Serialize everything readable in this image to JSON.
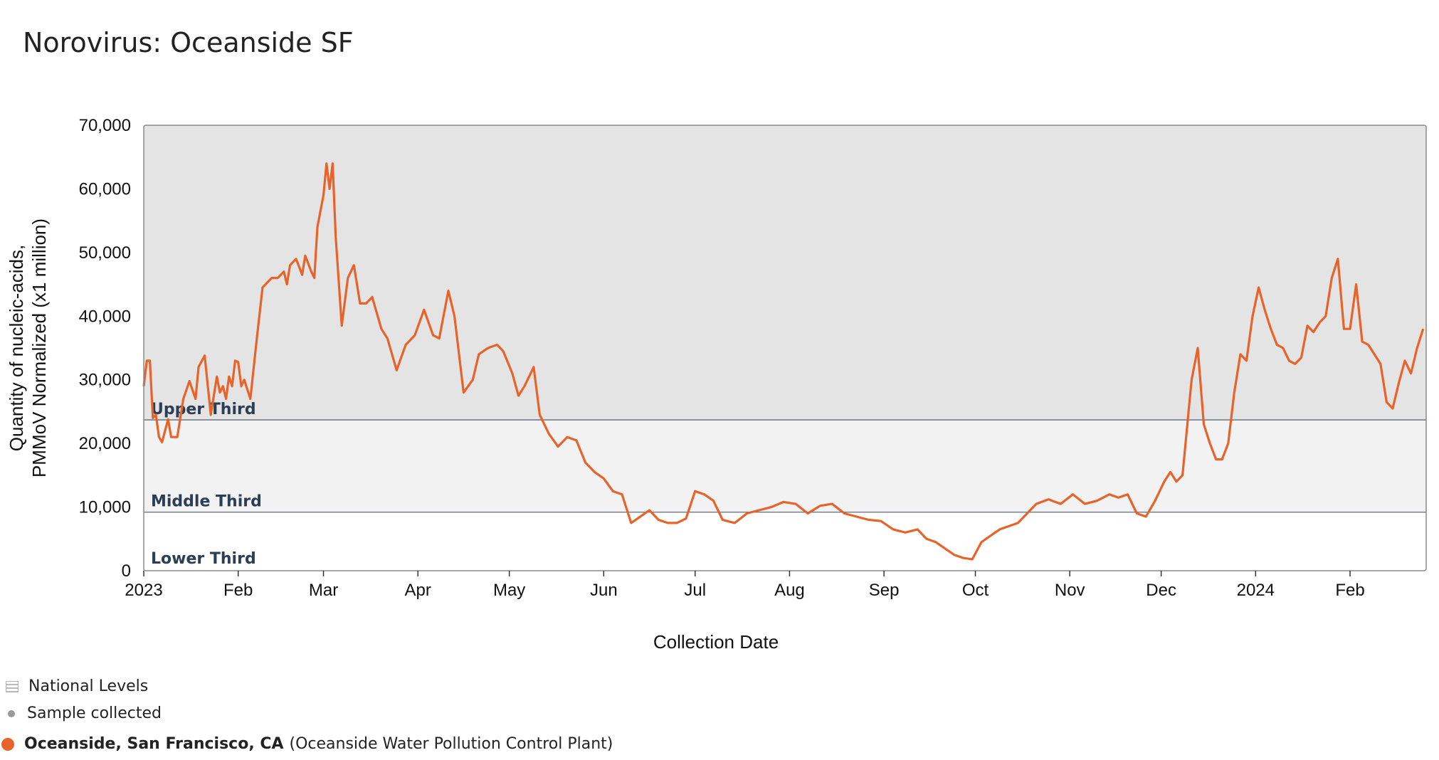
{
  "title": "Norovirus: Oceanside SF",
  "legend": {
    "national_label": "National Levels",
    "sample_label": "Sample collected",
    "site_name": "Oceanside, San Francisco, CA",
    "site_plant": "(Oceanside Water Pollution Control Plant)"
  },
  "colors": {
    "line": "#e8632a",
    "upper_band": "#e4e4e4",
    "middle_band": "#f2f2f2",
    "lower_band": "#ffffff",
    "band_label": "#2c3e55"
  },
  "chart_data": {
    "type": "line",
    "xlabel": "Collection Date",
    "ylabel_lines": [
      "Quantity of nucleic-acids,",
      "PMMoV Normalized (x1 million)"
    ],
    "ylim": [
      0,
      70000
    ],
    "xlim": [
      "2023-01-01",
      "2024-02-26"
    ],
    "y_ticks": [
      {
        "value": 0,
        "label": "0"
      },
      {
        "value": 10000,
        "label": "10,000"
      },
      {
        "value": 20000,
        "label": "20,000"
      },
      {
        "value": 30000,
        "label": "30,000"
      },
      {
        "value": 40000,
        "label": "40,000"
      },
      {
        "value": 50000,
        "label": "50,000"
      },
      {
        "value": 60000,
        "label": "60,000"
      },
      {
        "value": 70000,
        "label": "70,000"
      }
    ],
    "x_ticks": [
      {
        "date": "2023-01-01",
        "label": "2023"
      },
      {
        "date": "2023-02-01",
        "label": "Feb"
      },
      {
        "date": "2023-03-01",
        "label": "Mar"
      },
      {
        "date": "2023-04-01",
        "label": "Apr"
      },
      {
        "date": "2023-05-01",
        "label": "May"
      },
      {
        "date": "2023-06-01",
        "label": "Jun"
      },
      {
        "date": "2023-07-01",
        "label": "Jul"
      },
      {
        "date": "2023-08-01",
        "label": "Aug"
      },
      {
        "date": "2023-09-01",
        "label": "Sep"
      },
      {
        "date": "2023-10-01",
        "label": "Oct"
      },
      {
        "date": "2023-11-01",
        "label": "Nov"
      },
      {
        "date": "2023-12-01",
        "label": "Dec"
      },
      {
        "date": "2024-01-01",
        "label": "2024"
      },
      {
        "date": "2024-02-01",
        "label": "Feb"
      }
    ],
    "bands": [
      {
        "label": "Lower Third",
        "from": 0,
        "to": 9200
      },
      {
        "label": "Middle Third",
        "from": 9200,
        "to": 23700
      },
      {
        "label": "Upper Third",
        "from": 23700,
        "to": 70000
      }
    ],
    "series": [
      {
        "x": [
          "2023-01-01",
          "2023-01-02",
          "2023-01-03",
          "2023-01-04",
          "2023-01-05",
          "2023-01-06",
          "2023-01-07",
          "2023-01-09",
          "2023-01-10",
          "2023-01-12",
          "2023-01-14",
          "2023-01-16",
          "2023-01-18",
          "2023-01-19",
          "2023-01-21",
          "2023-01-23",
          "2023-01-25",
          "2023-01-26",
          "2023-01-27",
          "2023-01-28",
          "2023-01-29",
          "2023-01-30",
          "2023-01-31",
          "2023-02-01",
          "2023-02-02",
          "2023-02-03",
          "2023-02-05",
          "2023-02-07",
          "2023-02-09",
          "2023-02-12",
          "2023-02-14",
          "2023-02-16",
          "2023-02-17",
          "2023-02-18",
          "2023-02-20",
          "2023-02-22",
          "2023-02-23",
          "2023-02-25",
          "2023-02-26",
          "2023-02-27",
          "2023-03-01",
          "2023-03-02",
          "2023-03-03",
          "2023-03-04",
          "2023-03-05",
          "2023-03-07",
          "2023-03-09",
          "2023-03-11",
          "2023-03-13",
          "2023-03-15",
          "2023-03-17",
          "2023-03-20",
          "2023-03-22",
          "2023-03-25",
          "2023-03-28",
          "2023-03-31",
          "2023-04-03",
          "2023-04-06",
          "2023-04-08",
          "2023-04-11",
          "2023-04-13",
          "2023-04-16",
          "2023-04-19",
          "2023-04-21",
          "2023-04-24",
          "2023-04-27",
          "2023-04-29",
          "2023-05-02",
          "2023-05-04",
          "2023-05-06",
          "2023-05-09",
          "2023-05-11",
          "2023-05-14",
          "2023-05-17",
          "2023-05-20",
          "2023-05-23",
          "2023-05-26",
          "2023-05-29",
          "2023-06-01",
          "2023-06-04",
          "2023-06-07",
          "2023-06-10",
          "2023-06-13",
          "2023-06-16",
          "2023-06-19",
          "2023-06-22",
          "2023-06-25",
          "2023-06-28",
          "2023-07-01",
          "2023-07-04",
          "2023-07-07",
          "2023-07-10",
          "2023-07-14",
          "2023-07-18",
          "2023-07-22",
          "2023-07-26",
          "2023-07-30",
          "2023-08-03",
          "2023-08-07",
          "2023-08-11",
          "2023-08-15",
          "2023-08-19",
          "2023-08-23",
          "2023-08-27",
          "2023-08-31",
          "2023-09-04",
          "2023-09-08",
          "2023-09-12",
          "2023-09-15",
          "2023-09-18",
          "2023-09-21",
          "2023-09-24",
          "2023-09-27",
          "2023-09-30",
          "2023-10-03",
          "2023-10-06",
          "2023-10-09",
          "2023-10-12",
          "2023-10-15",
          "2023-10-18",
          "2023-10-21",
          "2023-10-25",
          "2023-10-29",
          "2023-11-02",
          "2023-11-06",
          "2023-11-10",
          "2023-11-14",
          "2023-11-17",
          "2023-11-20",
          "2023-11-23",
          "2023-11-26",
          "2023-11-29",
          "2023-12-02",
          "2023-12-04",
          "2023-12-06",
          "2023-12-08",
          "2023-12-10",
          "2023-12-11",
          "2023-12-13",
          "2023-12-15",
          "2023-12-17",
          "2023-12-19",
          "2023-12-21",
          "2023-12-23",
          "2023-12-25",
          "2023-12-27",
          "2023-12-29",
          "2023-12-31",
          "2024-01-02",
          "2024-01-04",
          "2024-01-06",
          "2024-01-08",
          "2024-01-10",
          "2024-01-12",
          "2024-01-14",
          "2024-01-16",
          "2024-01-18",
          "2024-01-20",
          "2024-01-22",
          "2024-01-24",
          "2024-01-26",
          "2024-01-28",
          "2024-01-30",
          "2024-02-01",
          "2024-02-03",
          "2024-02-05",
          "2024-02-07",
          "2024-02-09",
          "2024-02-11",
          "2024-02-13",
          "2024-02-15",
          "2024-02-17",
          "2024-02-19",
          "2024-02-21",
          "2024-02-23",
          "2024-02-25"
        ],
        "y": [
          29000,
          33000,
          33000,
          24000,
          24500,
          21000,
          20200,
          23800,
          21000,
          21000,
          27000,
          29800,
          27000,
          32000,
          33800,
          24500,
          30500,
          28000,
          29000,
          27000,
          30500,
          29000,
          33000,
          32800,
          29000,
          30000,
          27000,
          36000,
          44500,
          46000,
          46000,
          47000,
          45000,
          48000,
          49000,
          46500,
          49500,
          47000,
          46000,
          54000,
          59000,
          64000,
          60000,
          64000,
          52500,
          38500,
          46000,
          48000,
          42000,
          42000,
          43000,
          38000,
          36500,
          31500,
          35500,
          37000,
          41000,
          37000,
          36500,
          44000,
          40000,
          28000,
          30000,
          34000,
          35000,
          35500,
          34500,
          31000,
          27500,
          29000,
          32000,
          24500,
          21500,
          19500,
          21000,
          20500,
          17000,
          15500,
          14500,
          12500,
          12000,
          7500,
          8500,
          9500,
          8000,
          7500,
          7500,
          8200,
          12500,
          12000,
          11000,
          8000,
          7500,
          9000,
          9500,
          10000,
          10800,
          10500,
          9000,
          10200,
          10500,
          9000,
          8500,
          8000,
          7800,
          6500,
          6000,
          6500,
          5000,
          4500,
          3500,
          2500,
          2000,
          1800,
          4500,
          5500,
          6500,
          7000,
          7500,
          9000,
          10500,
          11200,
          10500,
          12000,
          10500,
          11000,
          12000,
          11500,
          12000,
          9000,
          8500,
          11000,
          14000,
          15500,
          14000,
          15000,
          25000,
          30000,
          35000,
          23000,
          20000,
          17500,
          17500,
          20000,
          28000,
          34000,
          33000,
          40000,
          44500,
          41000,
          38000,
          35500,
          35000,
          33000,
          32500,
          33500,
          38500,
          37500,
          39000,
          40000,
          46000,
          49000,
          38000,
          38000,
          45000,
          36000,
          35500,
          34000,
          32500,
          26500,
          25500,
          29500,
          33000,
          31000,
          35000,
          38000
        ]
      }
    ]
  }
}
